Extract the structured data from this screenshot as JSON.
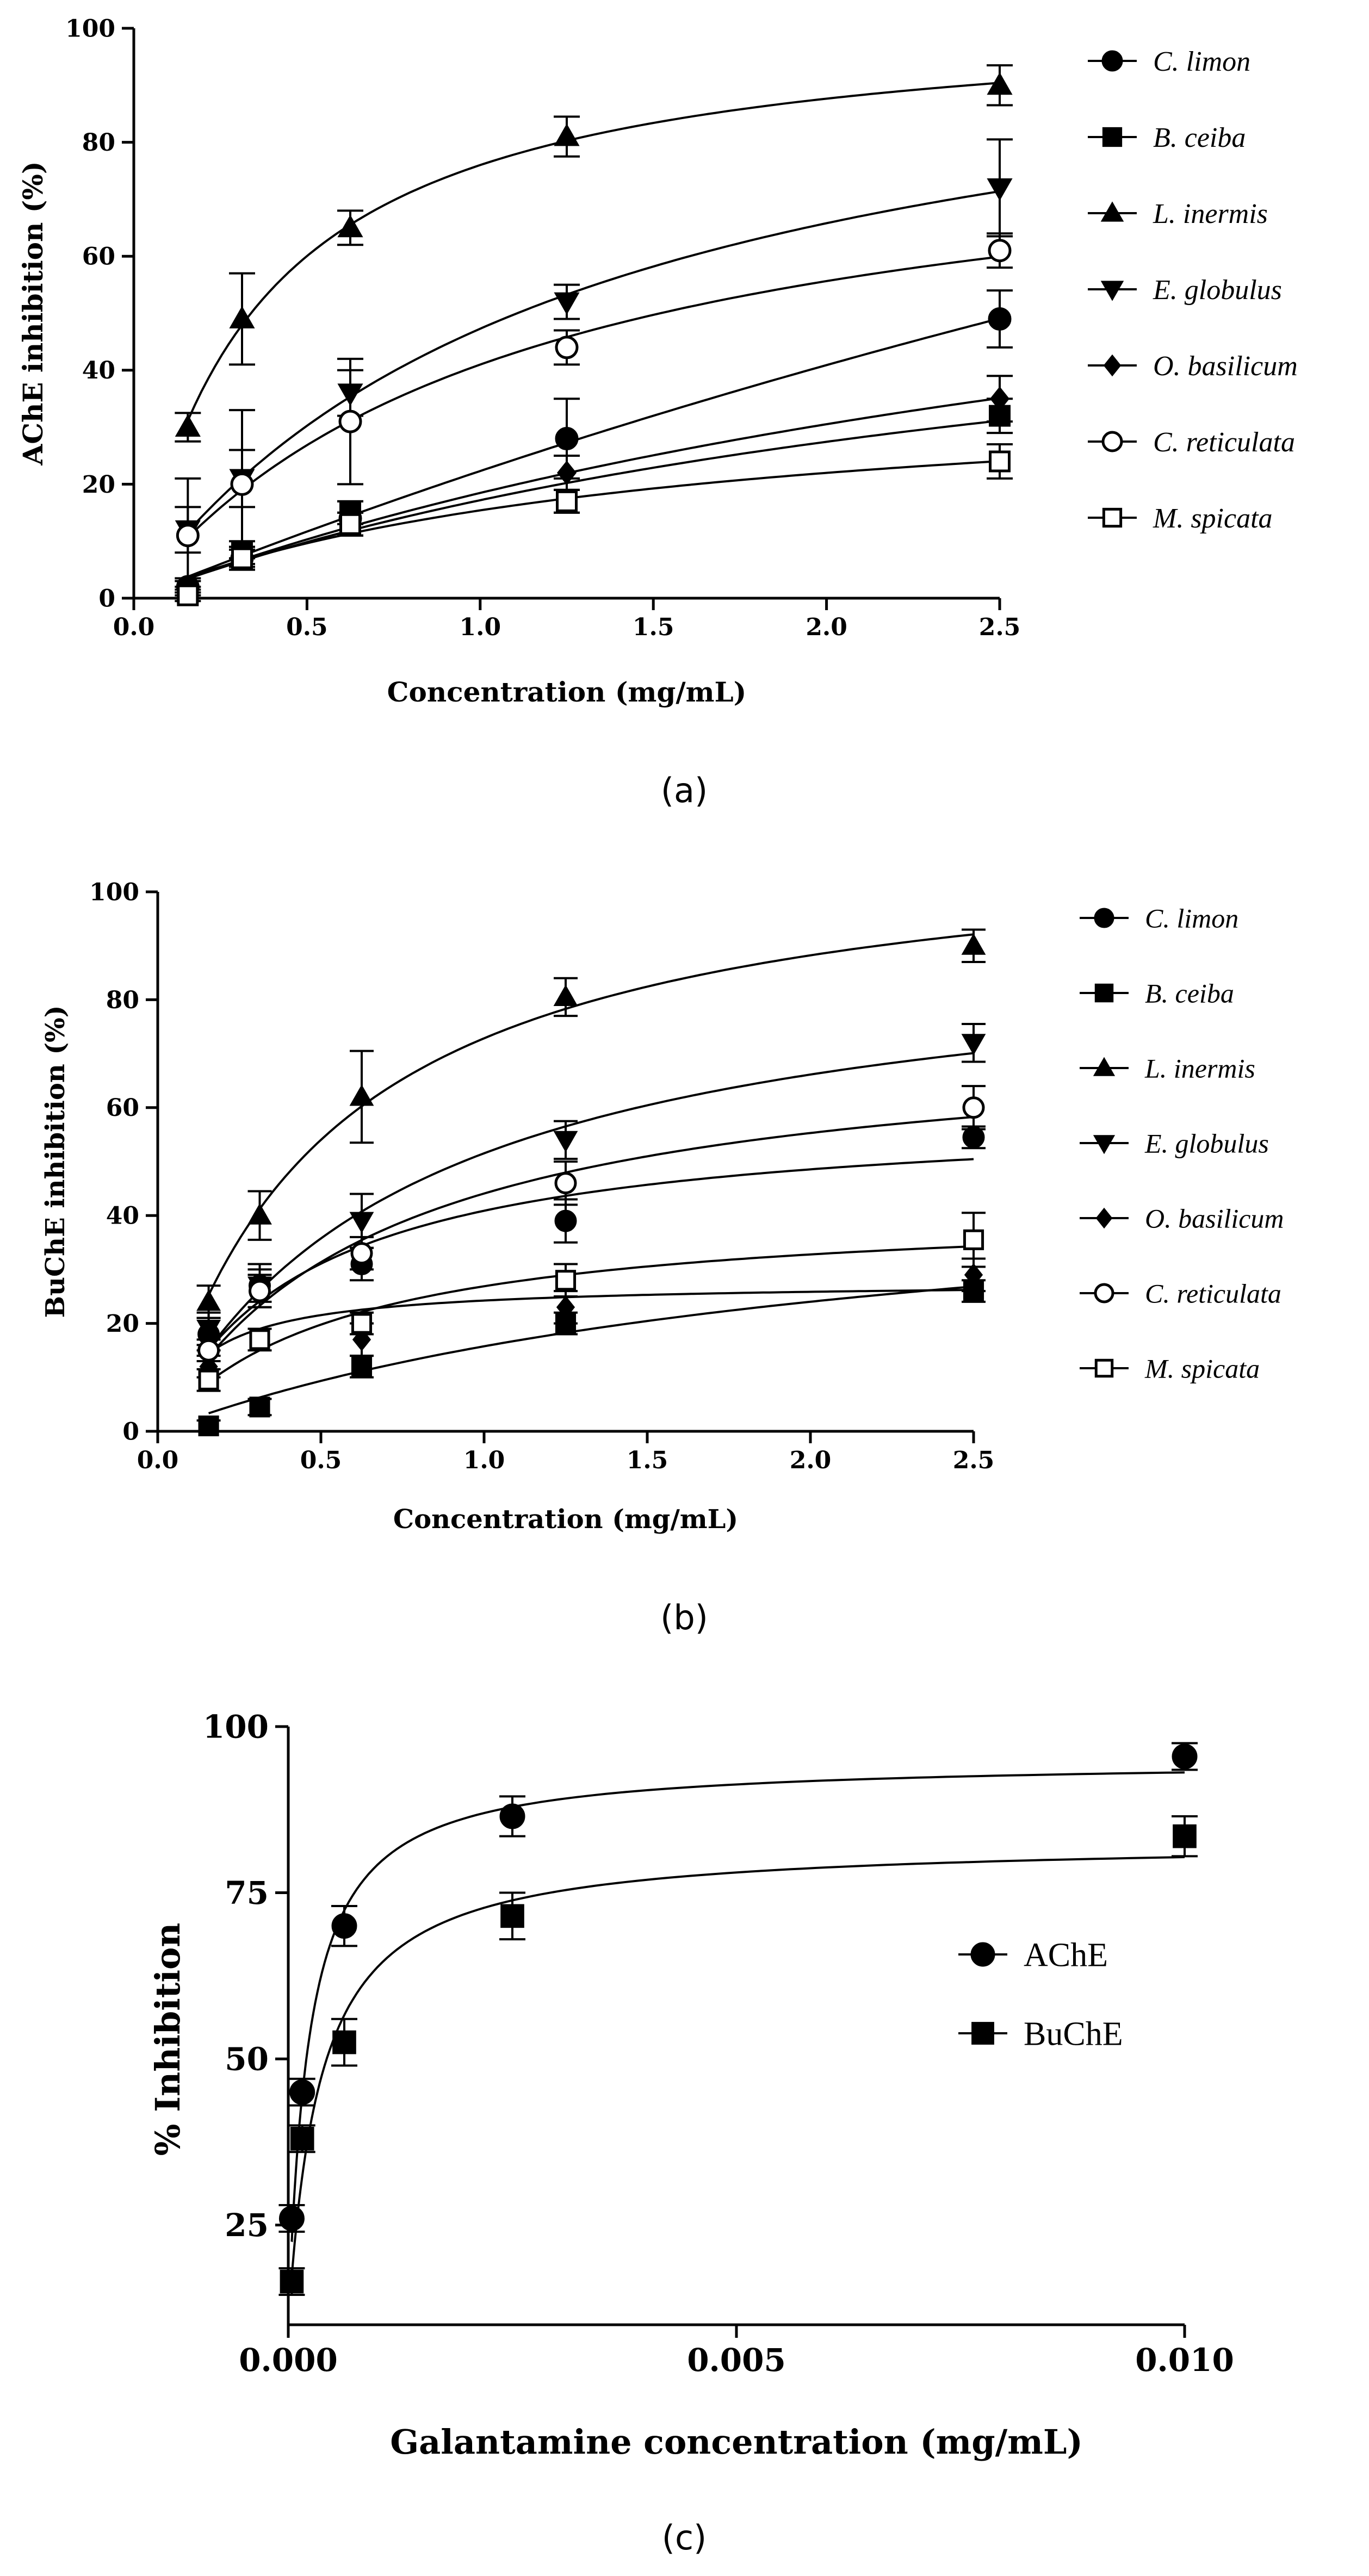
{
  "chart_data": [
    {
      "type": "scatter",
      "panel": "a",
      "caption": "(a)",
      "title": "",
      "xlabel": "Concentration (mg/mL)",
      "ylabel": "AChE inhibition (%)",
      "xlim": [
        0,
        2.5
      ],
      "ylim": [
        0,
        100
      ],
      "x_ticks": [
        "0.0",
        "0.5",
        "1.0",
        "1.5",
        "2.0",
        "2.5"
      ],
      "y_ticks": [
        "0",
        "20",
        "40",
        "60",
        "80",
        "100"
      ],
      "legend_position": "right",
      "x": [
        0.156,
        0.3125,
        0.625,
        1.25,
        2.5
      ],
      "series": [
        {
          "name": "C. limon",
          "marker": "circle-filled",
          "values": [
            2,
            7,
            14,
            28,
            49
          ],
          "errors": [
            1.5,
            2,
            3,
            7,
            5
          ]
        },
        {
          "name": "B. ceiba",
          "marker": "square-filled",
          "values": [
            1,
            8,
            15,
            17,
            32
          ],
          "errors": [
            1,
            2,
            2,
            2,
            3
          ]
        },
        {
          "name": "L. inermis",
          "marker": "triangle-up-filled",
          "values": [
            30,
            49,
            65,
            81,
            90
          ],
          "errors": [
            2.5,
            8,
            3,
            3.5,
            3.5
          ]
        },
        {
          "name": "E. globulus",
          "marker": "triangle-down-filled",
          "values": [
            12,
            21,
            36,
            52,
            72
          ],
          "errors": [
            4,
            5,
            4,
            3,
            8.5
          ]
        },
        {
          "name": "O. basilicum",
          "marker": "diamond-filled",
          "values": [
            2,
            7,
            13,
            22,
            35
          ],
          "errors": [
            1,
            2,
            2,
            3,
            4
          ]
        },
        {
          "name": "C. reticulata",
          "marker": "circle-open",
          "values": [
            11,
            20,
            31,
            44,
            61
          ],
          "errors": [
            10,
            13,
            11,
            3,
            3
          ]
        },
        {
          "name": "M. spicata",
          "marker": "square-open",
          "values": [
            0.5,
            7,
            13,
            17,
            24
          ],
          "errors": [
            1,
            1.5,
            2,
            2,
            3
          ]
        }
      ]
    },
    {
      "type": "scatter",
      "panel": "b",
      "caption": "(b)",
      "title": "",
      "xlabel": "Concentration (mg/mL)",
      "ylabel": "BuChE inhibition (%)",
      "xlim": [
        0,
        2.5
      ],
      "ylim": [
        0,
        100
      ],
      "x_ticks": [
        "0.0",
        "0.5",
        "1.0",
        "1.5",
        "2.0",
        "2.5"
      ],
      "y_ticks": [
        "0",
        "20",
        "40",
        "60",
        "80",
        "100"
      ],
      "legend_position": "right",
      "x": [
        0.156,
        0.3125,
        0.625,
        1.25,
        2.5
      ],
      "series": [
        {
          "name": "C. limon",
          "marker": "circle-filled",
          "values": [
            18,
            27,
            31,
            39,
            54.5
          ],
          "errors": [
            3,
            3,
            3,
            4,
            2
          ]
        },
        {
          "name": "B. ceiba",
          "marker": "square-filled",
          "values": [
            1,
            4.5,
            12,
            20,
            26
          ],
          "errors": [
            1,
            1.5,
            2,
            2,
            2
          ]
        },
        {
          "name": "L. inermis",
          "marker": "triangle-up-filled",
          "values": [
            24,
            40,
            62,
            80.5,
            90
          ],
          "errors": [
            3,
            4.5,
            8.5,
            3.5,
            3
          ]
        },
        {
          "name": "E. globulus",
          "marker": "triangle-down-filled",
          "values": [
            19,
            27,
            39,
            54,
            72
          ],
          "errors": [
            3,
            4,
            5,
            3.5,
            3.5
          ]
        },
        {
          "name": "O. basilicum",
          "marker": "diamond-filled",
          "values": [
            12,
            26,
            17,
            23,
            29
          ],
          "errors": [
            2,
            3,
            3,
            3,
            3
          ]
        },
        {
          "name": "C. reticulata",
          "marker": "circle-open",
          "values": [
            15,
            26,
            33,
            46,
            60
          ],
          "errors": [
            2,
            3,
            3,
            4,
            4
          ]
        },
        {
          "name": "M. spicata",
          "marker": "square-open",
          "values": [
            9.5,
            17,
            20,
            28,
            35.5
          ],
          "errors": [
            2,
            2,
            2,
            3,
            5
          ]
        }
      ]
    },
    {
      "type": "scatter",
      "panel": "c",
      "caption": "(c)",
      "title": "",
      "xlabel": "Galantamine concentration (mg/mL)",
      "ylabel": "% Inhibition",
      "xlim": [
        0,
        0.01
      ],
      "ylim": [
        10,
        100
      ],
      "x_ticks": [
        "0.000",
        "0.005",
        "0.010"
      ],
      "y_ticks": [
        "25",
        "50",
        "75",
        "100"
      ],
      "legend_position": "middle-right",
      "x": [
        3.91e-05,
        0.000156,
        0.000625,
        0.0025,
        0.01
      ],
      "series": [
        {
          "name": "AChE",
          "marker": "circle-filled",
          "values": [
            26,
            45,
            70,
            86.5,
            95.5
          ],
          "errors": [
            2,
            2,
            3,
            3,
            2
          ]
        },
        {
          "name": "BuChE",
          "marker": "square-filled",
          "values": [
            16.5,
            38,
            52.5,
            71.5,
            83.5
          ],
          "errors": [
            2,
            2,
            3.5,
            3.5,
            3
          ]
        }
      ]
    }
  ]
}
